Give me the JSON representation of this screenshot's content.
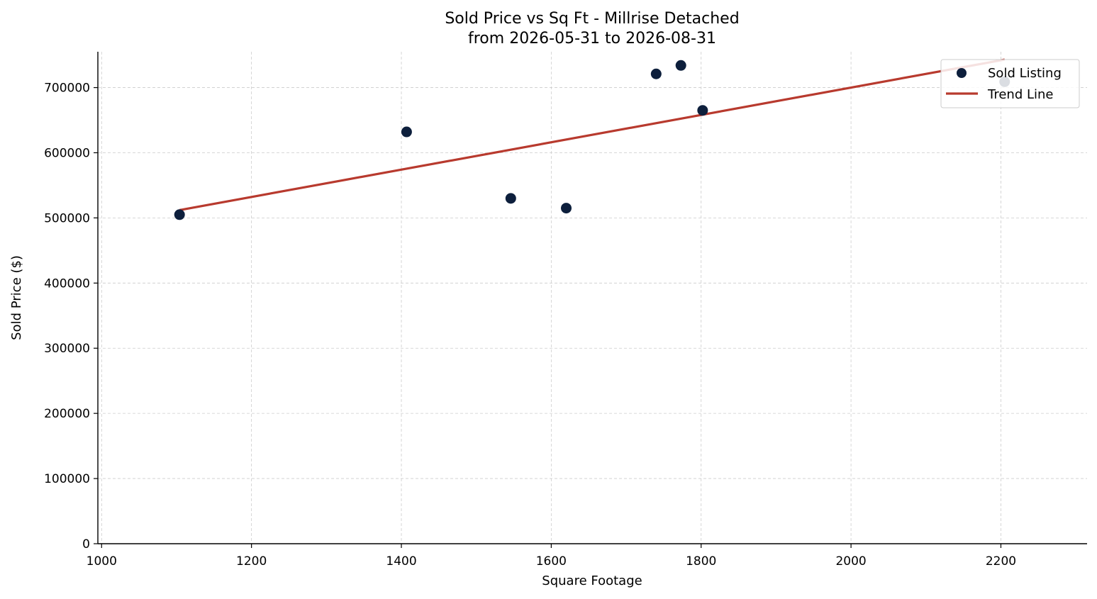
{
  "chart_data": {
    "type": "scatter",
    "title": "Sold Price vs Sq Ft - Millrise Detached",
    "subtitle": "from 2026-05-31 to 2026-08-31",
    "xlabel": "Square Footage",
    "ylabel": "Sold Price ($)",
    "xlim": [
      995,
      2315
    ],
    "ylim": [
      0,
      755000
    ],
    "xticks": [
      1000,
      1200,
      1400,
      1600,
      1800,
      2000,
      2200
    ],
    "yticks": [
      0,
      100000,
      200000,
      300000,
      400000,
      500000,
      600000,
      700000
    ],
    "grid": true,
    "legend_position": "top-right",
    "colors": {
      "points": "#0d1f3c",
      "trend": "#b83a2e"
    },
    "series": [
      {
        "name": "Sold Listing",
        "kind": "scatter",
        "points": [
          {
            "x": 1104,
            "y": 505000
          },
          {
            "x": 1407,
            "y": 632000
          },
          {
            "x": 1546,
            "y": 530000
          },
          {
            "x": 1620,
            "y": 515000
          },
          {
            "x": 1740,
            "y": 721000
          },
          {
            "x": 1773,
            "y": 734000
          },
          {
            "x": 1802,
            "y": 665000
          },
          {
            "x": 2205,
            "y": 709000
          }
        ]
      },
      {
        "name": "Trend Line",
        "kind": "line",
        "points": [
          {
            "x": 1104,
            "y": 512000
          },
          {
            "x": 2205,
            "y": 743000
          }
        ]
      }
    ]
  }
}
